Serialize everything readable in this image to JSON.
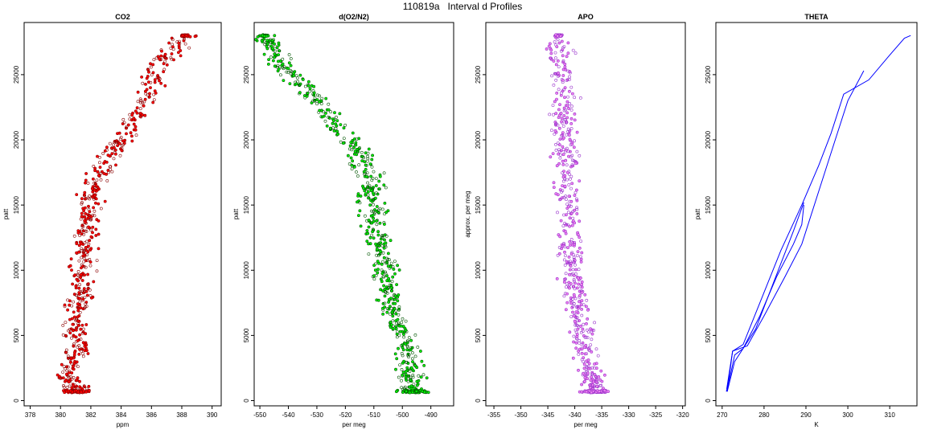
{
  "figure": {
    "title": "110819a   Interval d Profiles"
  },
  "chart_data": [
    {
      "type": "scatter",
      "title": "CO2",
      "xlabel": "ppm",
      "ylabel": "patt",
      "xlim": [
        377.6,
        390.6
      ],
      "ylim": [
        -400,
        29000
      ],
      "xticks": [
        "378",
        "380",
        "382",
        "384",
        "386",
        "388",
        "390"
      ],
      "yticks": [
        "0",
        "5000",
        "10000",
        "15000",
        "20000",
        "25000"
      ],
      "color": "#ff0000",
      "edge_color": "#8b0000",
      "series": [
        {
          "x": [
            381.0,
            380.5,
            381.2,
            381.0,
            381.3,
            381.6,
            381.5,
            381.9,
            382.0,
            382.8,
            383.9,
            385.6,
            386.7,
            388.2
          ],
          "y": [
            700,
            2000,
            4000,
            6000,
            8000,
            10000,
            12000,
            14000,
            16000,
            18000,
            20000,
            23000,
            26000,
            28000
          ]
        }
      ]
    },
    {
      "type": "scatter",
      "title": "d(O2/N2)",
      "xlabel": "per meg",
      "ylabel": "patt",
      "xlim": [
        -552,
        -482
      ],
      "ylim": [
        -400,
        29000
      ],
      "xticks": [
        "-550",
        "-540",
        "-530",
        "-520",
        "-510",
        "-500",
        "-490"
      ],
      "yticks": [
        "0",
        "5000",
        "10000",
        "15000",
        "20000",
        "25000"
      ],
      "color": "#00ee00",
      "edge_color": "#005500",
      "series": [
        {
          "x": [
            -496,
            -497,
            -498,
            -502,
            -505,
            -506,
            -508,
            -510,
            -511,
            -513,
            -518,
            -527,
            -537,
            -545,
            -548
          ],
          "y": [
            700,
            2000,
            4000,
            6000,
            8000,
            10000,
            12000,
            14000,
            16000,
            18000,
            20000,
            22500,
            24500,
            26500,
            28000
          ]
        }
      ]
    },
    {
      "type": "scatter",
      "title": "APO",
      "xlabel": "per meg",
      "ylabel": "approx. per meg",
      "xlim": [
        -356.5,
        -319.5
      ],
      "ylim": [
        -400,
        29000
      ],
      "xticks": [
        "-355",
        "-350",
        "-345",
        "-340",
        "-335",
        "-330",
        "-325",
        "-320"
      ],
      "yticks": [
        "0",
        "5000",
        "10000",
        "15000",
        "20000",
        "25000"
      ],
      "color": "#ee82ee",
      "edge_color": "#9932cc",
      "series": [
        {
          "x": [
            -336,
            -337,
            -338,
            -339,
            -340,
            -340.5,
            -341,
            -341,
            -341.5,
            -342,
            -342,
            -342.5,
            -343
          ],
          "y": [
            700,
            2000,
            4000,
            6000,
            8000,
            10000,
            12000,
            15000,
            18000,
            20000,
            22000,
            25000,
            28000
          ]
        }
      ]
    },
    {
      "type": "line",
      "title": "THETA",
      "xlabel": "K",
      "ylabel": "patt",
      "xlim": [
        268.5,
        316.5
      ],
      "ylim": [
        -400,
        29000
      ],
      "xticks": [
        "270",
        "280",
        "290",
        "300",
        "310"
      ],
      "yticks": [
        "0",
        "5000",
        "10000",
        "15000",
        "20000",
        "25000"
      ],
      "color": "#0000ff",
      "series": [
        {
          "x": [
            271,
            272,
            273,
            275,
            278,
            281,
            284,
            287,
            289.5
          ],
          "y": [
            700,
            2000,
            3500,
            4000,
            5500,
            8000,
            10500,
            13000,
            15200
          ]
        },
        {
          "x": [
            271.2,
            273,
            275,
            279,
            283,
            287,
            289,
            289.5
          ],
          "y": [
            700,
            3000,
            4000,
            6500,
            9500,
            12000,
            13500,
            15000
          ]
        },
        {
          "x": [
            271.1,
            272.5,
            276,
            280,
            285,
            289,
            293,
            297,
            300,
            303.8
          ],
          "y": [
            900,
            3800,
            4200,
            6500,
            9500,
            12000,
            16000,
            20000,
            23000,
            25300
          ]
        },
        {
          "x": [
            271.2,
            272.5,
            275,
            279,
            284,
            289,
            293,
            296,
            299,
            305,
            310,
            313.5,
            315
          ],
          "y": [
            700,
            3800,
            4300,
            7500,
            11500,
            15000,
            18000,
            20500,
            23500,
            24600,
            26500,
            27800,
            28000
          ]
        }
      ]
    }
  ]
}
